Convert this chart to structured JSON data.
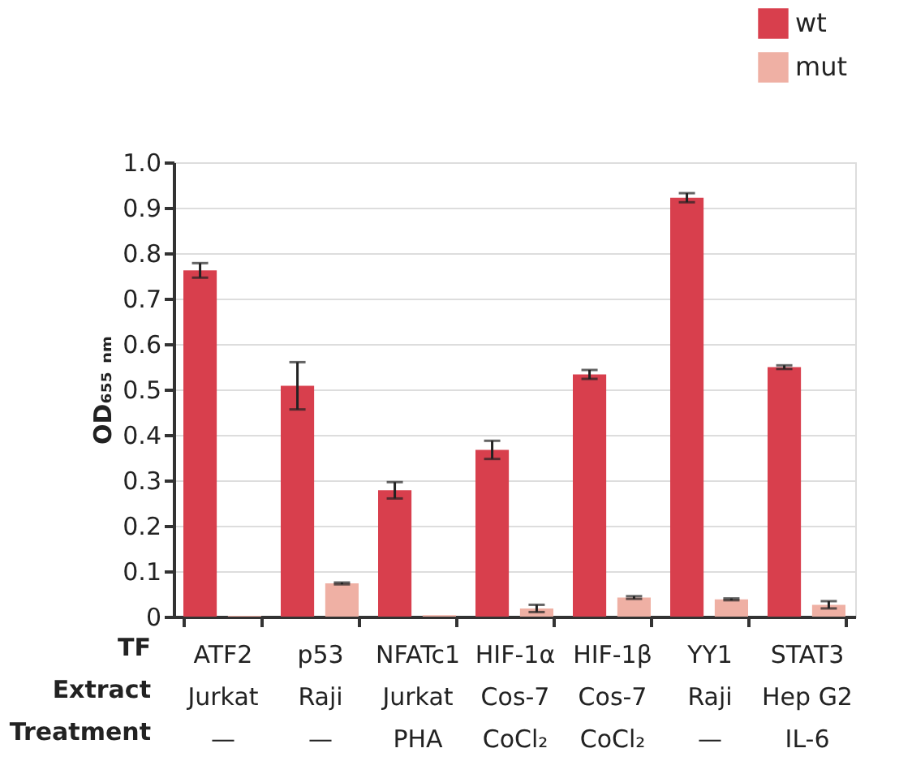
{
  "chart_data": {
    "type": "bar",
    "categories": [
      "ATF2\nJurkat\n—",
      "p53\nRaji\n—",
      "NFATc1\nJurkat\nPHA",
      "HIF-1α\nCos-7\nCoCl₂",
      "HIF-1β\nCos-7\nCoCl₂",
      "YY1\nRaji\n—",
      "STAT3\nHep G2\nIL-6"
    ],
    "series": [
      {
        "name": "wt",
        "color": "#d83f4d",
        "values": [
          0.762,
          0.508,
          0.278,
          0.367,
          0.533,
          0.922,
          0.549
        ],
        "errors": [
          0.016,
          0.052,
          0.018,
          0.02,
          0.01,
          0.01,
          0.004
        ]
      },
      {
        "name": "mut",
        "color": "#efb0a4",
        "values": [
          0.002,
          0.073,
          0.003,
          0.018,
          0.042,
          0.038,
          0.026
        ],
        "errors": [
          null,
          0.002,
          null,
          0.008,
          0.003,
          0.002,
          0.008
        ]
      }
    ],
    "ylabel": "OD₆₅₅ ₙₘ",
    "annotations": [
      "TF",
      "Extract",
      "Treatment"
    ],
    "ylim": [
      0,
      1.0
    ],
    "yticks": [
      0,
      0.1,
      0.2,
      0.3,
      0.4,
      0.5,
      0.6,
      0.7,
      0.8,
      0.9,
      {
        "value": 1.0,
        "label": "1.0"
      }
    ],
    "grid": "y",
    "legend": "top right"
  }
}
